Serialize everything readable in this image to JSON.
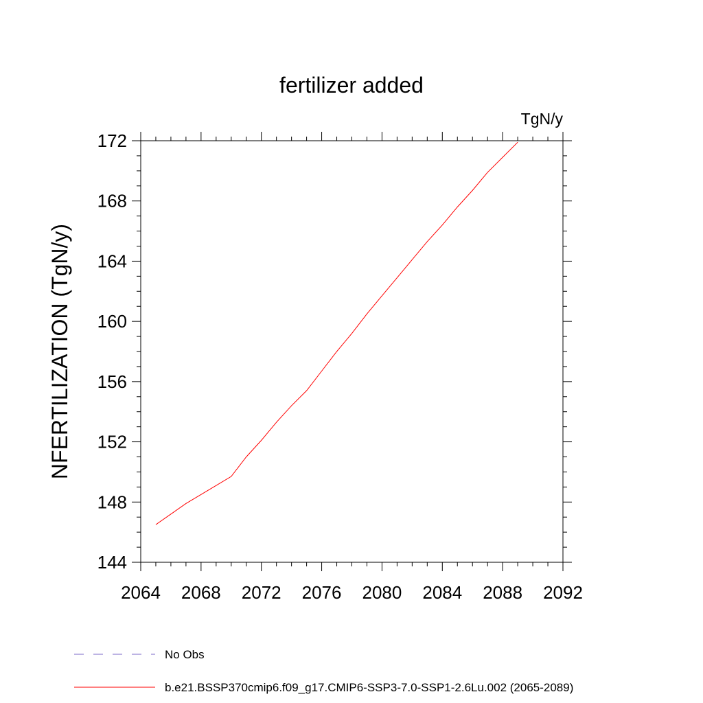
{
  "chart_data": {
    "type": "line",
    "title": "fertilizer added",
    "units_label": "TgN/y",
    "ylabel": "NFERTILIZATION  (TgN/y)",
    "xlabel": "",
    "xlim": [
      2064,
      2092
    ],
    "ylim": [
      144,
      172
    ],
    "x_ticks": [
      "2064",
      "2068",
      "2072",
      "2076",
      "2080",
      "2084",
      "2088",
      "2092"
    ],
    "y_ticks": [
      "144",
      "148",
      "152",
      "156",
      "160",
      "164",
      "168",
      "172"
    ],
    "grid": false,
    "series": [
      {
        "name": "b.e21.BSSP370cmip6.f09_g17.CMIP6-SSP3-7.0-SSP1-2.6Lu.002 (2065-2089)",
        "color": "#ff0000",
        "x": [
          2065,
          2066,
          2067,
          2068,
          2069,
          2070,
          2071,
          2072,
          2073,
          2074,
          2075,
          2076,
          2077,
          2078,
          2079,
          2080,
          2081,
          2082,
          2083,
          2084,
          2085,
          2086,
          2087,
          2088,
          2089
        ],
        "y": [
          146.5,
          147.2,
          147.9,
          148.5,
          149.1,
          149.7,
          151.0,
          152.1,
          153.3,
          154.4,
          155.4,
          156.7,
          158.0,
          159.2,
          160.5,
          161.7,
          162.9,
          164.1,
          165.3,
          166.4,
          167.6,
          168.7,
          169.9,
          170.9,
          171.9
        ]
      }
    ],
    "legend": [
      {
        "label": "No Obs",
        "color": "#7b68c8",
        "style": "dashed"
      },
      {
        "label": "b.e21.BSSP370cmip6.f09_g17.CMIP6-SSP3-7.0-SSP1-2.6Lu.002 (2065-2089)",
        "color": "#ff0000",
        "style": "solid"
      }
    ],
    "legend_position": "bottom-left"
  }
}
